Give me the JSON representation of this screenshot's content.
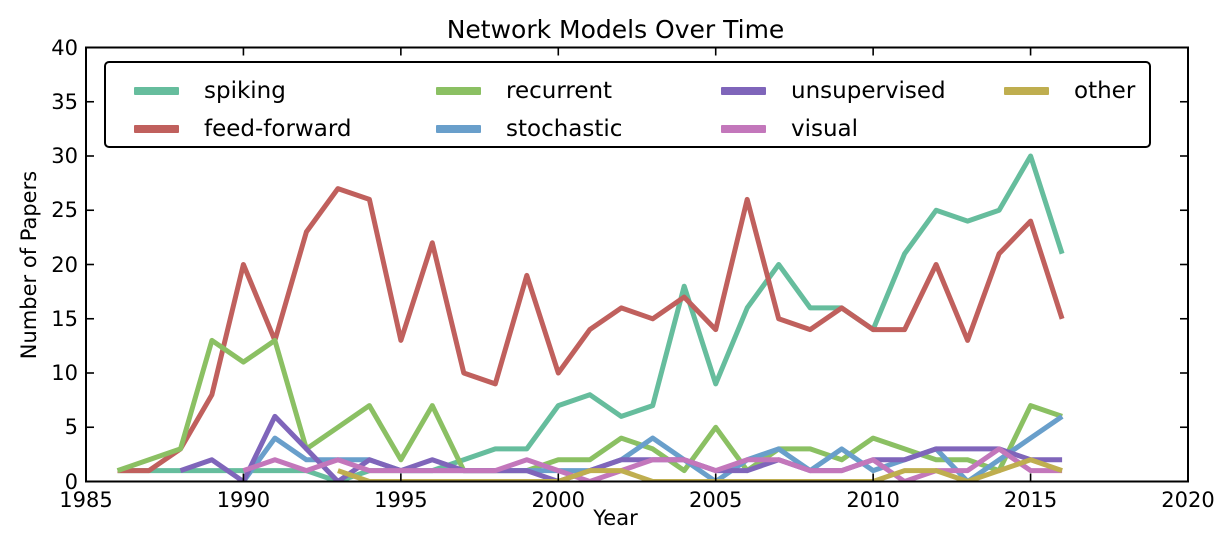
{
  "chart_data": {
    "type": "line",
    "title": "Network Models Over Time",
    "xlabel": "Year",
    "ylabel": "Number of Papers",
    "xlim": [
      1985,
      2020
    ],
    "ylim": [
      0,
      40
    ],
    "x_ticks": [
      1985,
      1990,
      1995,
      2000,
      2005,
      2010,
      2015,
      2020
    ],
    "y_ticks": [
      0,
      5,
      10,
      15,
      20,
      25,
      30,
      35,
      40
    ],
    "grid": false,
    "frame_color": "#000000",
    "background_color": "#ffffff",
    "line_width": 5,
    "legend": {
      "position": "upper center inside plot",
      "columns": 4,
      "fill_order": "column-major"
    },
    "series": [
      {
        "name": "spiking",
        "color": "#66bd9d",
        "start_year": 1986,
        "values": [
          1,
          1,
          1,
          1,
          1,
          1,
          1,
          0,
          1,
          1,
          1,
          2,
          3,
          3,
          7,
          8,
          6,
          7,
          18,
          9,
          16,
          20,
          16,
          16,
          14,
          21,
          25,
          24,
          25,
          30,
          21
        ]
      },
      {
        "name": "feed-forward",
        "color": "#c0605d",
        "start_year": 1986,
        "values": [
          1,
          1,
          3,
          8,
          20,
          13,
          23,
          27,
          26,
          13,
          22,
          10,
          9,
          19,
          10,
          14,
          16,
          15,
          17,
          14,
          26,
          15,
          14,
          16,
          14,
          14,
          20,
          13,
          21,
          24,
          15
        ]
      },
      {
        "name": "recurrent",
        "color": "#8bc063",
        "start_year": 1986,
        "values": [
          1,
          2,
          3,
          13,
          11,
          13,
          3,
          5,
          7,
          2,
          7,
          1,
          1,
          1,
          2,
          2,
          4,
          3,
          1,
          5,
          1,
          3,
          3,
          2,
          4,
          3,
          2,
          2,
          1,
          7,
          6
        ]
      },
      {
        "name": "stochastic",
        "color": "#699fcb",
        "start_year": 1990,
        "values": [
          0,
          4,
          2,
          2,
          2,
          1,
          1,
          1,
          1,
          1,
          1,
          1,
          2,
          4,
          2,
          0,
          2,
          3,
          1,
          3,
          1,
          2,
          3,
          0,
          2,
          4,
          6
        ]
      },
      {
        "name": "unsupervised",
        "color": "#7f65ba",
        "start_year": 1988,
        "values": [
          1,
          2,
          0,
          6,
          3,
          0,
          2,
          1,
          2,
          1,
          1,
          1,
          0,
          1,
          2,
          2,
          2,
          1,
          1,
          2,
          1,
          1,
          2,
          2,
          3,
          3,
          3,
          2,
          2
        ]
      },
      {
        "name": "visual",
        "color": "#c377bb",
        "start_year": 1990,
        "values": [
          1,
          2,
          1,
          2,
          1,
          1,
          1,
          1,
          1,
          2,
          1,
          0,
          1,
          2,
          2,
          1,
          2,
          2,
          1,
          1,
          2,
          0,
          1,
          1,
          3,
          1,
          1
        ]
      },
      {
        "name": "other",
        "color": "#bfae4f",
        "start_year": 1993,
        "values": [
          1,
          0,
          0,
          0,
          0,
          0,
          0,
          0,
          1,
          1,
          0,
          0,
          0,
          0,
          0,
          0,
          0,
          0,
          1,
          1,
          0,
          1,
          2,
          1
        ]
      }
    ]
  }
}
